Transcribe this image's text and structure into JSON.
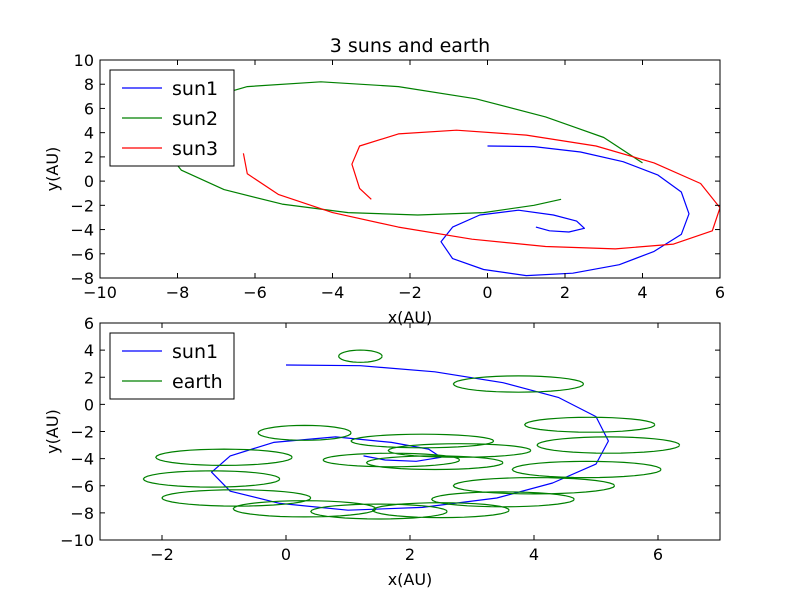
{
  "chart_data": [
    {
      "type": "line",
      "title": "3 suns and earth",
      "xlabel": "x(AU)",
      "ylabel": "y(AU)",
      "xlim": [
        -10,
        6
      ],
      "ylim": [
        -8,
        10
      ],
      "xticks": [
        -10,
        -8,
        -6,
        -4,
        -2,
        0,
        2,
        4,
        6
      ],
      "yticks": [
        -8,
        -6,
        -4,
        -2,
        0,
        2,
        4,
        6,
        8,
        10
      ],
      "grid": false,
      "legend_position": "top-left",
      "series": [
        {
          "name": "sun1",
          "color": "#0000ff",
          "x": [
            0.0,
            1.2,
            2.4,
            3.5,
            4.4,
            5.0,
            5.2,
            5.0,
            4.3,
            3.4,
            2.2,
            1.0,
            -0.1,
            -0.9,
            -1.2,
            -0.9,
            -0.2,
            0.8,
            1.7,
            2.3,
            2.5,
            2.1,
            1.6,
            1.25
          ],
          "y": [
            2.9,
            2.85,
            2.4,
            1.6,
            0.5,
            -0.9,
            -2.7,
            -4.4,
            -5.8,
            -6.9,
            -7.6,
            -7.8,
            -7.3,
            -6.4,
            -5.0,
            -3.8,
            -2.8,
            -2.4,
            -2.8,
            -3.3,
            -3.9,
            -4.2,
            -4.1,
            -3.8
          ]
        },
        {
          "name": "sun2",
          "color": "#008000",
          "x": [
            4.0,
            3.0,
            1.5,
            -0.3,
            -2.3,
            -4.3,
            -6.2,
            -7.5,
            -8.3,
            -8.4,
            -7.9,
            -6.8,
            -5.3,
            -3.6,
            -1.8,
            -0.1,
            1.2,
            1.9
          ],
          "y": [
            1.5,
            3.6,
            5.3,
            6.8,
            7.8,
            8.2,
            7.8,
            6.6,
            4.9,
            2.9,
            0.9,
            -0.7,
            -1.9,
            -2.6,
            -2.8,
            -2.6,
            -2.0,
            -1.5
          ],
          "note_hidden": false
        },
        {
          "name": "sun3",
          "color": "#ff0000",
          "x": [
            -6.3,
            -6.2,
            -5.4,
            -4.0,
            -2.3,
            -0.4,
            1.5,
            3.3,
            4.8,
            5.8,
            6.0,
            5.5,
            4.3,
            2.8,
            1.0,
            -0.8,
            -2.3,
            -3.3,
            -3.5,
            -3.3,
            -3.0
          ],
          "y": [
            2.3,
            0.6,
            -1.1,
            -2.6,
            -3.8,
            -4.8,
            -5.4,
            -5.6,
            -5.2,
            -4.1,
            -2.2,
            -0.2,
            1.5,
            2.9,
            3.8,
            4.2,
            3.9,
            2.9,
            1.4,
            -0.6,
            -1.5
          ]
        }
      ]
    },
    {
      "type": "line",
      "title": "",
      "xlabel": "x(AU)",
      "ylabel": "y(AU)",
      "xlim": [
        -3,
        7
      ],
      "ylim": [
        -10,
        6
      ],
      "xticks": [
        -2,
        0,
        2,
        4,
        6
      ],
      "yticks": [
        -10,
        -8,
        -6,
        -4,
        -2,
        0,
        2,
        4,
        6
      ],
      "grid": false,
      "legend_position": "top-left",
      "series": [
        {
          "name": "sun1",
          "color": "#0000ff",
          "x": [
            0.0,
            1.2,
            2.4,
            3.5,
            4.4,
            5.0,
            5.2,
            5.0,
            4.3,
            3.4,
            2.2,
            1.0,
            -0.1,
            -0.9,
            -1.2,
            -0.9,
            -0.2,
            0.8,
            1.7,
            2.3,
            2.5,
            2.1,
            1.6,
            1.25
          ],
          "y": [
            2.9,
            2.85,
            2.4,
            1.6,
            0.5,
            -0.9,
            -2.7,
            -4.4,
            -5.8,
            -6.9,
            -7.6,
            -7.8,
            -7.3,
            -6.4,
            -5.0,
            -3.8,
            -2.8,
            -2.4,
            -2.8,
            -3.3,
            -3.9,
            -4.2,
            -4.1,
            -3.8
          ]
        },
        {
          "name": "earth",
          "color": "#008000",
          "loops": [
            {
              "cx": 1.2,
              "cy": 3.55,
              "rx": 0.35,
              "ry": 0.45
            },
            {
              "cx": 3.75,
              "cy": 1.5,
              "rx": 1.05,
              "ry": 0.6
            },
            {
              "cx": 4.9,
              "cy": -1.5,
              "rx": 1.05,
              "ry": 0.55
            },
            {
              "cx": 5.2,
              "cy": -3.0,
              "rx": 1.15,
              "ry": 0.6
            },
            {
              "cx": 4.85,
              "cy": -4.8,
              "rx": 1.2,
              "ry": 0.6
            },
            {
              "cx": 4.0,
              "cy": -6.0,
              "rx": 1.3,
              "ry": 0.6
            },
            {
              "cx": 3.5,
              "cy": -7.0,
              "rx": 1.15,
              "ry": 0.55
            },
            {
              "cx": 2.5,
              "cy": -7.8,
              "rx": 1.1,
              "ry": 0.55
            },
            {
              "cx": 1.5,
              "cy": -7.9,
              "rx": 1.1,
              "ry": 0.55
            },
            {
              "cx": 0.3,
              "cy": -7.7,
              "rx": 1.15,
              "ry": 0.6
            },
            {
              "cx": -0.8,
              "cy": -6.9,
              "rx": 1.2,
              "ry": 0.6
            },
            {
              "cx": -1.2,
              "cy": -5.5,
              "rx": 1.1,
              "ry": 0.6
            },
            {
              "cx": -1.0,
              "cy": -3.9,
              "rx": 1.1,
              "ry": 0.6
            },
            {
              "cx": 0.3,
              "cy": -2.1,
              "rx": 0.75,
              "ry": 0.55
            },
            {
              "cx": 1.7,
              "cy": -4.1,
              "rx": 1.1,
              "ry": 0.5
            },
            {
              "cx": 2.4,
              "cy": -4.3,
              "rx": 1.1,
              "ry": 0.5
            },
            {
              "cx": 2.2,
              "cy": -2.7,
              "rx": 1.15,
              "ry": 0.5
            },
            {
              "cx": 2.8,
              "cy": -3.4,
              "rx": 1.15,
              "ry": 0.5
            }
          ]
        }
      ]
    }
  ]
}
